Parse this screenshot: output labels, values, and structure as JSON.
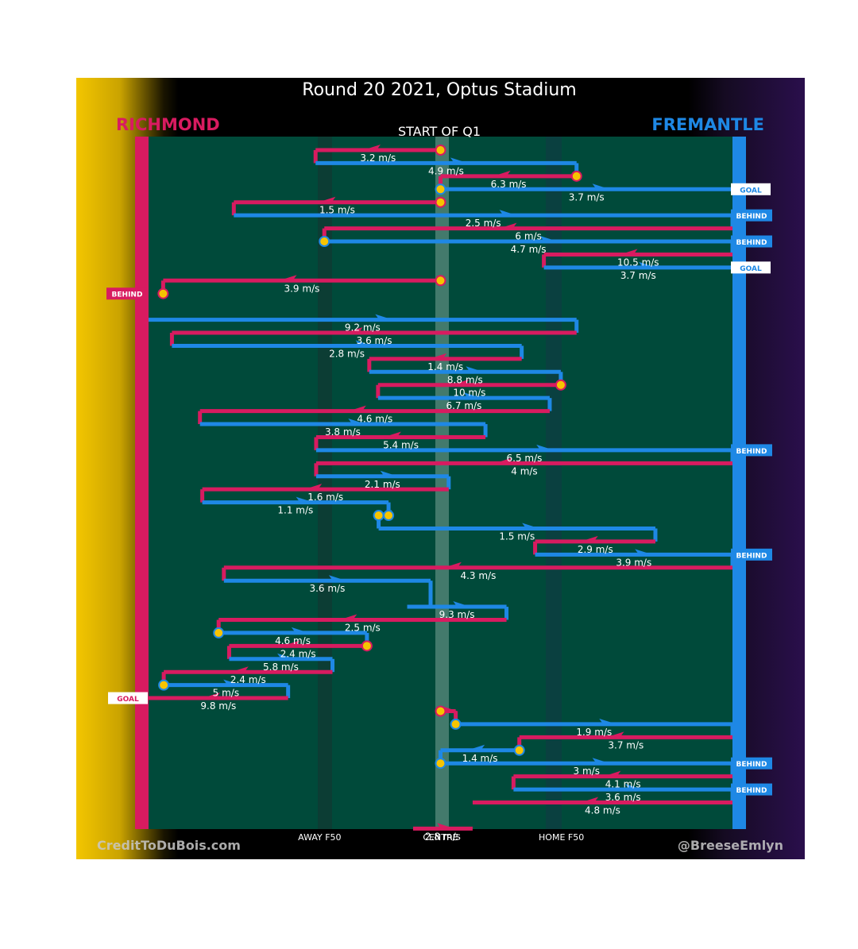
{
  "title": "Round 20 2021, Optus Stadium",
  "subtitle": "START OF Q1",
  "teams": {
    "left": {
      "name": "RICHMOND",
      "color": "#d81b60"
    },
    "right": {
      "name": "FREMANTLE",
      "color": "#1e88e5"
    }
  },
  "credits": {
    "left": "CreditToDuBois.com",
    "right": "@BreeseEmlyn"
  },
  "chart_data": {
    "type": "line",
    "x_axis": {
      "range": [
        0,
        100
      ],
      "tick_labels": [
        {
          "x": 29.3,
          "label": "AWAY F50"
        },
        {
          "x": 50,
          "label": "CENTRE"
        },
        {
          "x": 70.7,
          "label": "HOME F50"
        }
      ]
    },
    "chains": [
      {
        "team": "R",
        "xs": [
          50,
          28.6
        ],
        "y": 0,
        "speed": "3.2 m/s",
        "start_marker": true
      },
      {
        "team": "F",
        "xs": [
          28.6,
          73.3
        ],
        "y": 1,
        "speed": "4.9 m/s"
      },
      {
        "team": "R",
        "xs": [
          73.3,
          50
        ],
        "y": 2,
        "speed": "6.3 m/s",
        "start_marker": true
      },
      {
        "team": "F",
        "xs": [
          50,
          100
        ],
        "y": 3,
        "speed": "3.7 m/s",
        "start_marker": true,
        "end_label": "GOAL"
      },
      {
        "team": "R",
        "xs": [
          50,
          14.6
        ],
        "y": 4,
        "speed": "1.5 m/s",
        "start_marker": true
      },
      {
        "team": "F",
        "xs": [
          14.6,
          100
        ],
        "y": 5,
        "speed": "2.5 m/s",
        "end_label": "BEHIND"
      },
      {
        "team": "R",
        "xs": [
          100,
          30.1
        ],
        "y": 6,
        "speed": "6 m/s"
      },
      {
        "team": "F",
        "xs": [
          30.1,
          100
        ],
        "y": 7,
        "speed": "4.7 m/s",
        "start_marker": true,
        "end_label": "BEHIND"
      },
      {
        "team": "R",
        "xs": [
          100,
          67.7
        ],
        "y": 8,
        "speed": "10.5 m/s"
      },
      {
        "team": "F",
        "xs": [
          67.7,
          100
        ],
        "y": 9,
        "speed": "3.7 m/s",
        "end_label": "GOAL"
      },
      {
        "team": "R",
        "xs": [
          50,
          2.5
        ],
        "y": 10,
        "speed": "3.9 m/s",
        "start_marker": true
      },
      {
        "team": "R",
        "xs": [
          2.5,
          2.5
        ],
        "y": 11,
        "speed": "",
        "end_marker": true,
        "end_label": "BEHIND"
      },
      {
        "team": "F",
        "xs": [
          0,
          73.3
        ],
        "y": 13,
        "speed": "9.2 m/s"
      },
      {
        "team": "R",
        "xs": [
          73.3,
          4
        ],
        "y": 14,
        "speed": "3.6 m/s"
      },
      {
        "team": "F",
        "xs": [
          4,
          63.9
        ],
        "y": 15,
        "speed": "2.8 m/s"
      },
      {
        "team": "R",
        "xs": [
          63.9,
          37.8
        ],
        "y": 16,
        "speed": "1.4 m/s"
      },
      {
        "team": "F",
        "xs": [
          37.8,
          70.6
        ],
        "y": 17,
        "speed": "8.8 m/s"
      },
      {
        "team": "R",
        "xs": [
          70.6,
          39.3
        ],
        "y": 18,
        "speed": "10 m/s",
        "start_marker": true
      },
      {
        "team": "F",
        "xs": [
          39.3,
          68.7
        ],
        "y": 19,
        "speed": "6.7 m/s"
      },
      {
        "team": "R",
        "xs": [
          68.7,
          8.8
        ],
        "y": 20,
        "speed": "4.6 m/s"
      },
      {
        "team": "F",
        "xs": [
          8.8,
          57.7
        ],
        "y": 21,
        "speed": "3.8 m/s"
      },
      {
        "team": "R",
        "xs": [
          57.7,
          28.7
        ],
        "y": 22,
        "speed": "5.4 m/s"
      },
      {
        "team": "F",
        "xs": [
          28.7,
          100
        ],
        "y": 23,
        "speed": "6.5 m/s",
        "end_label": "BEHIND"
      },
      {
        "team": "R",
        "xs": [
          100,
          28.7
        ],
        "y": 24,
        "speed": "4 m/s"
      },
      {
        "team": "F",
        "xs": [
          28.7,
          51.4
        ],
        "y": 25,
        "speed": "2.1 m/s"
      },
      {
        "team": "R",
        "xs": [
          51.4,
          9.2
        ],
        "y": 26,
        "speed": "1.6 m/s"
      },
      {
        "team": "F",
        "xs": [
          9.2,
          41.1
        ],
        "y": 27,
        "speed": "1.1 m/s"
      },
      {
        "team": "F",
        "xs": [
          41.1,
          39.4
        ],
        "y": 28,
        "speed": "",
        "start_marker": true,
        "end_marker": true
      },
      {
        "team": "F",
        "xs": [
          39.4,
          86.8
        ],
        "y": 29,
        "speed": "1.5 m/s"
      },
      {
        "team": "R",
        "xs": [
          86.8,
          66.2
        ],
        "y": 30,
        "speed": "2.9 m/s"
      },
      {
        "team": "F",
        "xs": [
          66.2,
          100
        ],
        "y": 31,
        "speed": "3.9 m/s",
        "end_label": "BEHIND"
      },
      {
        "team": "R",
        "xs": [
          100,
          12.9
        ],
        "y": 32,
        "speed": "4.3 m/s"
      },
      {
        "team": "F",
        "xs": [
          12.9,
          48.3
        ],
        "y": 33,
        "speed": "3.6 m/s"
      },
      {
        "team": "F",
        "xs": [
          44.3,
          61.3
        ],
        "y": 35,
        "speed": "9.3 m/s"
      },
      {
        "team": "R",
        "xs": [
          61.3,
          12
        ],
        "y": 36,
        "speed": "2.5 m/s"
      },
      {
        "team": "F",
        "xs": [
          12,
          37.4
        ],
        "y": 37,
        "speed": "4.6 m/s",
        "start_marker": true
      },
      {
        "team": "R",
        "xs": [
          37.4,
          13.8
        ],
        "y": 38,
        "speed": "2.4 m/s",
        "start_marker": true
      },
      {
        "team": "F",
        "xs": [
          13.8,
          31.5
        ],
        "y": 39,
        "speed": "5.8 m/s"
      },
      {
        "team": "R",
        "xs": [
          31.5,
          2.6
        ],
        "y": 40,
        "speed": "2.4 m/s"
      },
      {
        "team": "F",
        "xs": [
          2.6,
          23.9
        ],
        "y": 41,
        "speed": "5 m/s",
        "start_marker": true
      },
      {
        "team": "R",
        "xs": [
          23.9,
          0
        ],
        "y": 42,
        "speed": "9.8 m/s",
        "end_label": "GOAL"
      },
      {
        "team": "R",
        "xs": [
          50,
          52.6
        ],
        "y": 43,
        "speed": "",
        "start_marker": true
      },
      {
        "team": "F",
        "xs": [
          52.6,
          100
        ],
        "y": 44,
        "speed": "1.9 m/s",
        "start_marker": true
      },
      {
        "team": "R",
        "xs": [
          100,
          63.5
        ],
        "y": 45,
        "speed": "3.7 m/s"
      },
      {
        "team": "F",
        "xs": [
          63.5,
          50
        ],
        "y": 46,
        "speed": "1.4 m/s",
        "start_marker": true
      },
      {
        "team": "F",
        "xs": [
          50,
          100
        ],
        "y": 47,
        "speed": "3 m/s",
        "start_marker": true,
        "end_label": "BEHIND"
      },
      {
        "team": "R",
        "xs": [
          100,
          62.5
        ],
        "y": 48,
        "speed": "4.1 m/s"
      },
      {
        "team": "F",
        "xs": [
          62.5,
          100
        ],
        "y": 49,
        "speed": "3.6 m/s",
        "end_label": "BEHIND"
      },
      {
        "team": "R",
        "xs": [
          100,
          55.5
        ],
        "y": 50,
        "speed": "4.8 m/s"
      },
      {
        "team": "R",
        "xs": [
          45.3,
          55.5
        ],
        "y": 52,
        "speed": "2.8 m/s"
      }
    ]
  }
}
